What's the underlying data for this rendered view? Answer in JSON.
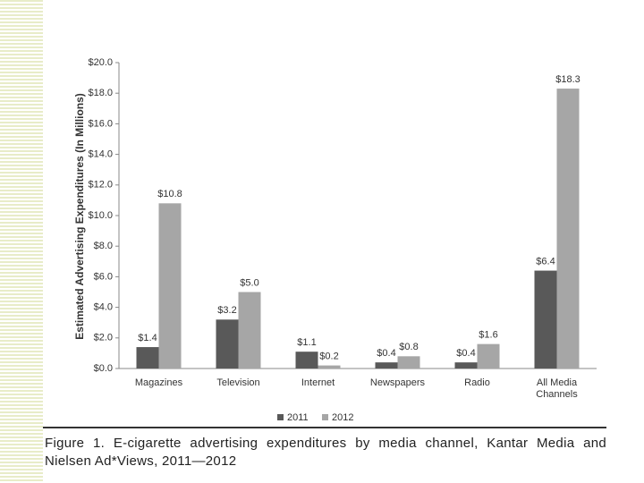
{
  "chart_data": {
    "type": "bar",
    "y_label": "Estimated Advertising Expenditures (In Millions)",
    "categories": [
      "Magazines",
      "Television",
      "Internet",
      "Newspapers",
      "Radio",
      "All Media Channels"
    ],
    "series": [
      {
        "name": "2011",
        "color": "#595959",
        "values": [
          1.4,
          3.2,
          1.1,
          0.4,
          0.4,
          6.4
        ],
        "value_labels": [
          "$1.4",
          "$3.2",
          "$1.1",
          "$0.4",
          "$0.4",
          "$6.4"
        ]
      },
      {
        "name": "2012",
        "color": "#a6a6a6",
        "values": [
          10.8,
          5.0,
          0.2,
          0.8,
          1.6,
          18.3
        ],
        "value_labels": [
          "$10.8",
          "$5.0",
          "$0.2",
          "$0.8",
          "$1.6",
          "$18.3"
        ]
      }
    ],
    "ylim": [
      0,
      20
    ],
    "yticks": [
      {
        "value": 0,
        "label": "$0.0"
      },
      {
        "value": 2,
        "label": "$2.0"
      },
      {
        "value": 4,
        "label": "$4.0"
      },
      {
        "value": 6,
        "label": "$6.0"
      },
      {
        "value": 8,
        "label": "$8.0"
      },
      {
        "value": 10,
        "label": "$10.0"
      },
      {
        "value": 12,
        "label": "$12.0"
      },
      {
        "value": 14,
        "label": "$14.0"
      },
      {
        "value": 16,
        "label": "$16.0"
      },
      {
        "value": 18,
        "label": "$18.0"
      },
      {
        "value": 20,
        "label": "$20.0"
      }
    ],
    "grid": false,
    "caption": "Figure 1. E-cigarette advertising expenditures by media channel, Kantar Media and Nielsen Ad*Views, 2011—2012"
  }
}
